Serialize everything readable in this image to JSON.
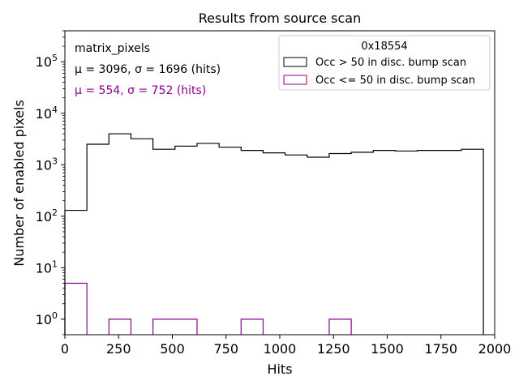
{
  "chart_data": {
    "type": "histogram",
    "title": "Results from source scan",
    "xlabel": "Hits",
    "ylabel": "Number of enabled pixels",
    "yscale": "log",
    "xlim": [
      0,
      2000
    ],
    "ylim": [
      0.5,
      400000
    ],
    "xticks": [
      0,
      250,
      500,
      750,
      1000,
      1250,
      1500,
      1750,
      2000
    ],
    "xtick_labels": [
      "0",
      "250",
      "500",
      "750",
      "1000",
      "1250",
      "1500",
      "1750",
      "2000"
    ],
    "yticks": [
      1,
      10,
      100,
      1000,
      10000,
      100000
    ],
    "ytick_exponents": [
      "0",
      "1",
      "2",
      "3",
      "4",
      "5"
    ],
    "bin_edges": [
      0,
      102.5,
      205,
      307.5,
      410,
      512.5,
      615,
      717.5,
      820,
      922.5,
      1025,
      1127.5,
      1230,
      1332.5,
      1435,
      1537.5,
      1640,
      1742.5,
      1845,
      1947.5
    ],
    "series": [
      {
        "name": "Occ > 50 in disc. bump scan",
        "color": "#000000",
        "values": [
          130,
          2500,
          4000,
          3200,
          2000,
          2300,
          2600,
          2200,
          1900,
          1700,
          1550,
          1400,
          1650,
          1750,
          1900,
          1850,
          1900,
          1900,
          2000
        ]
      },
      {
        "name": "Occ <= 50 in disc. bump scan",
        "color": "#8b008b",
        "values": [
          5,
          0,
          1,
          0,
          1,
          1,
          0,
          0,
          1,
          0,
          0,
          0,
          1,
          0,
          0,
          0,
          0,
          0,
          0
        ]
      }
    ],
    "legend_title": "0x18554",
    "legend_position": "upper-right",
    "annotations": [
      {
        "text": "matrix_pixels",
        "color": "#000000"
      },
      {
        "text": "μ = 3096, σ = 1696 (hits)",
        "color": "#000000"
      },
      {
        "text": "μ = 554, σ = 752 (hits)",
        "color": "#8b008b"
      }
    ]
  }
}
